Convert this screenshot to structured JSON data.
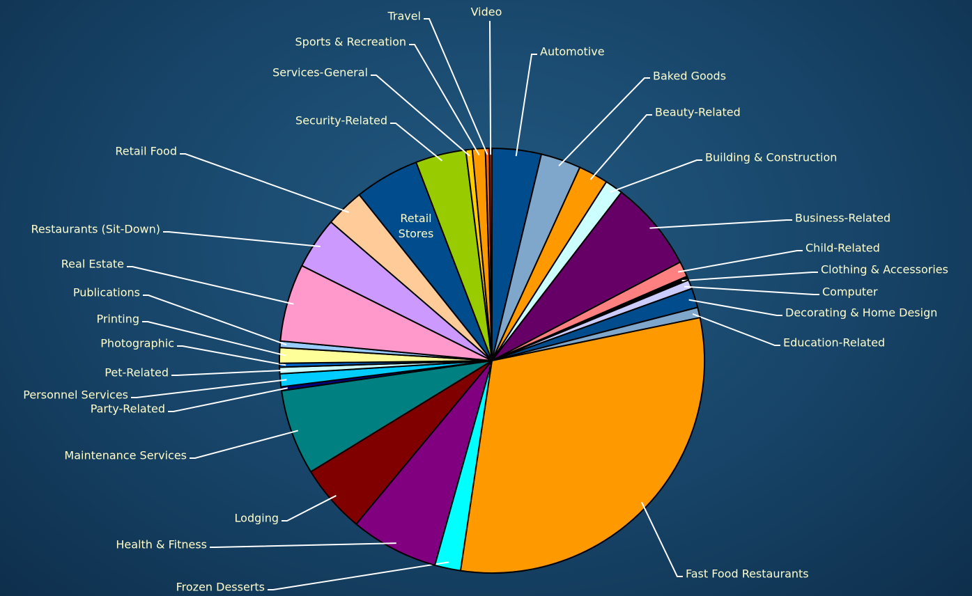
{
  "chart_data": {
    "type": "pie",
    "categories": [
      "Automotive",
      "Baked Goods",
      "Beauty-Related",
      "Building & Construction",
      "Business-Related",
      "Child-Related",
      "Clothing & Accessories",
      "Computer",
      "Decorating & Home Design",
      "Education-Related",
      "Fast Food Restaurants",
      "Frozen Desserts",
      "Health & Fitness",
      "Lodging",
      "Maintenance Services",
      "Party-Related",
      "Personnel Services",
      "Pet-Related",
      "Photographic",
      "Printing",
      "Publications",
      "Real Estate",
      "Restaurants (Sit-Down)",
      "Retail Food",
      "Retail Stores",
      "Security-Related",
      "Services-General",
      "Sports & Recreation",
      "Travel",
      "Video"
    ],
    "values": [
      3.8,
      3.1,
      2.3,
      1.4,
      7.0,
      1.2,
      0.3,
      0.7,
      1.5,
      0.8,
      31.1,
      2.0,
      6.8,
      5.3,
      6.6,
      0.3,
      1.0,
      0.5,
      0.3,
      1.2,
      0.5,
      6.0,
      4.0,
      3.0,
      5.0,
      3.9,
      0.5,
      1.0,
      0.3,
      0.2
    ],
    "colors": [
      "#004c8c",
      "#7fa7cc",
      "#ff9900",
      "#ccffff",
      "#660066",
      "#ff8080",
      "#000000",
      "#ccccff",
      "#004c8c",
      "#7fa7cc",
      "#ff9900",
      "#00ffff",
      "#800080",
      "#800000",
      "#008080",
      "#000080",
      "#00ccff",
      "#ccffff",
      "#0066cc",
      "#ffff99",
      "#99ccff",
      "#ff99cc",
      "#cc99ff",
      "#ffcc99",
      "#004c8c",
      "#99cc00",
      "#ffcc00",
      "#ff9900",
      "#ff6600",
      "#993300"
    ]
  }
}
